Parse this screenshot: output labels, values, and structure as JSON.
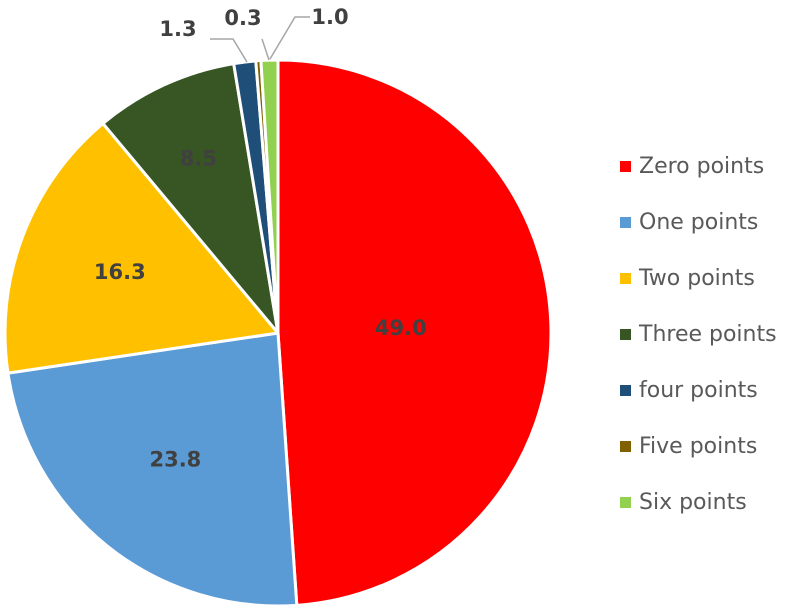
{
  "chart_data": {
    "type": "pie",
    "title": "",
    "legend_position": "right",
    "slices": [
      {
        "name": "Zero points",
        "value": 49.0,
        "label": "49.0",
        "color": "#ff0000"
      },
      {
        "name": "One points",
        "value": 23.8,
        "label": "23.8",
        "color": "#5b9bd5"
      },
      {
        "name": "Two points",
        "value": 16.3,
        "label": "16.3",
        "color": "#ffc000"
      },
      {
        "name": "Three points",
        "value": 8.5,
        "label": "8.5",
        "color": "#375623"
      },
      {
        "name": "four points",
        "value": 1.3,
        "label": "1.3",
        "color": "#1f4e79"
      },
      {
        "name": "Five points",
        "value": 0.3,
        "label": "0.3",
        "color": "#806000"
      },
      {
        "name": "Six points",
        "value": 1.0,
        "label": "1.0",
        "color": "#92d050"
      }
    ]
  }
}
